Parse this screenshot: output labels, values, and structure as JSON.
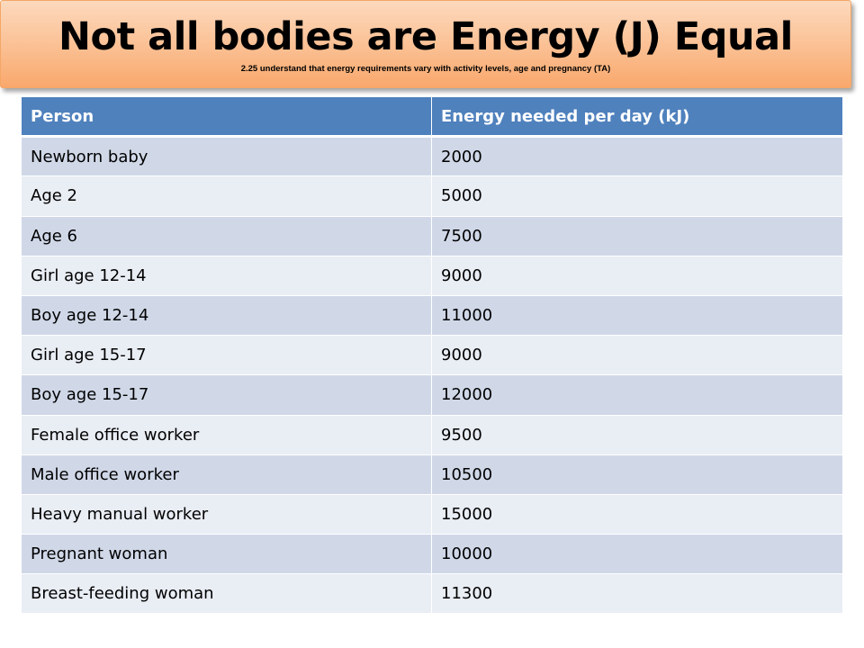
{
  "title": "Not all bodies are Energy (J) Equal",
  "subtitle": "2.25 understand that energy requirements vary with activity levels, age and pregnancy (TA)",
  "colors": {
    "header_bg": "#4f81bd",
    "row_odd": "#d0d8e8",
    "row_even": "#e9edf4",
    "banner_top": "#fcd9bd",
    "banner_bottom": "#f9a86c"
  },
  "table": {
    "headers": [
      "Person",
      "Energy needed per day (kJ)"
    ],
    "rows": [
      [
        "Newborn baby",
        "2000"
      ],
      [
        "Age 2",
        "5000"
      ],
      [
        "Age 6",
        "7500"
      ],
      [
        "Girl age 12-14",
        "9000"
      ],
      [
        "Boy age 12-14",
        "11000"
      ],
      [
        "Girl age 15-17",
        "9000"
      ],
      [
        "Boy age 15-17",
        "12000"
      ],
      [
        "Female office worker",
        "9500"
      ],
      [
        "Male office worker",
        "10500"
      ],
      [
        "Heavy manual worker",
        "15000"
      ],
      [
        "Pregnant woman",
        "10000"
      ],
      [
        "Breast-feeding woman",
        "11300"
      ]
    ]
  }
}
